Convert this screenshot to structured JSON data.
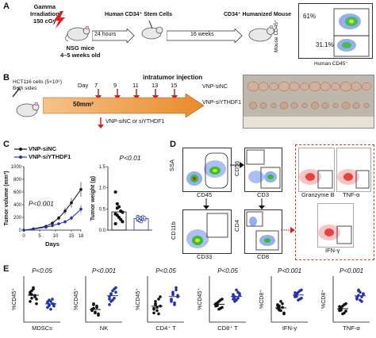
{
  "panels": {
    "a": "A",
    "b": "B",
    "c": "C",
    "d": "D",
    "e": "E"
  },
  "panelA": {
    "irradiation": "Gamma\nIrradiation\n150 cGy",
    "mice": "NSG mice\n4–5 weeks old",
    "interval1": "24 hours",
    "cells": "Human CD34⁺ Stem Cells",
    "interval2": "16 weeks",
    "result": "CD34⁺ Humanized Mouse",
    "flow_ylabel": "Mouse CD45⁺",
    "flow_xlabel": "Human CD45⁺",
    "flow_pct1": "61%",
    "flow_pct2": "31.1%"
  },
  "panelB": {
    "cells": "HCT116 cells (5×10⁶)\nBoth sides",
    "day_label": "Day",
    "days": [
      "7",
      "9",
      "11",
      "13",
      "15"
    ],
    "injection": "intratumor injection",
    "volume": "50mm³",
    "treatment": "VNP-siNC or siYTHDF1",
    "group1": "VNP-siNC",
    "group2": "VNP-siYTHDF1"
  },
  "panelC": {
    "legend1": "VNP-siNC",
    "legend2": "VNP-siYTHDF1",
    "line_ylabel": "Tumor volume (mm³)",
    "line_xlabel": "Days",
    "line_p": "P<0.001",
    "line_yticks": [
      "0",
      "200",
      "400",
      "600",
      "800",
      "1000"
    ],
    "line_xticks": [
      "0",
      "5",
      "10",
      "15",
      "18"
    ],
    "dot_ylabel": "Tumor weight (g)",
    "dot_p": "P<0.01",
    "dot_yticks": [
      "0.0",
      "0.5",
      "1.0",
      "1.5"
    ]
  },
  "panelD": {
    "ssa": "SSA",
    "cd45": "CD45",
    "cd56": "CD56",
    "cd3": "CD3",
    "cd11b": "CD11b",
    "cd33": "CD33",
    "cd4": "CD4",
    "cd8": "CD8",
    "granzyme": "Granzyme B",
    "tnf": "TNF-α",
    "ifn": "IFN-γ"
  },
  "panelE": {
    "pvals": [
      "P<0.05",
      "P<0.001",
      "P<0.05",
      "P<0.05",
      "P<0.001",
      "P<0.001"
    ],
    "ylabels": [
      "%CD45⁺",
      "%CD45⁺",
      "%CD45⁺",
      "%CD45⁺",
      "%CD8⁺",
      "%CD8⁺"
    ],
    "xlabels": [
      "MDSCs",
      "NK",
      "CD4⁺ T",
      "CD8⁺ T",
      "IFN-γ",
      "TNF-α"
    ]
  },
  "chart_data": [
    {
      "type": "line",
      "title": "",
      "xlabel": "Days",
      "ylabel": "Tumor volume (mm³)",
      "x": [
        0,
        3,
        7,
        9,
        11,
        13,
        15,
        18
      ],
      "xlim": [
        0,
        18
      ],
      "ylim": [
        0,
        1000
      ],
      "series": [
        {
          "name": "VNP-siNC",
          "values": [
            0,
            20,
            60,
            110,
            190,
            300,
            430,
            640
          ],
          "color": "#111111"
        },
        {
          "name": "VNP-siYTHDF1",
          "values": [
            0,
            15,
            45,
            70,
            100,
            130,
            190,
            330
          ],
          "color": "#2233aa"
        }
      ],
      "annotation": "P<0.001"
    },
    {
      "type": "scatter",
      "title": "",
      "ylabel": "Tumor weight (g)",
      "ylim": [
        0,
        1.5
      ],
      "groups": [
        {
          "name": "VNP-siNC",
          "mean": 0.43,
          "values": [
            0.9,
            0.62,
            0.55,
            0.45,
            0.42,
            0.38,
            0.35,
            0.3,
            0.25,
            0.2,
            0.15,
            0.52
          ]
        },
        {
          "name": "VNP-siYTHDF1",
          "mean": 0.27,
          "values": [
            0.32,
            0.3,
            0.28,
            0.26,
            0.25,
            0.24,
            0.22,
            0.2,
            0.31,
            0.29,
            0.27,
            0.23
          ]
        }
      ],
      "annotation": "P<0.01"
    },
    {
      "type": "scatter",
      "title": "",
      "xlabel": "MDSCs",
      "ylabel": "%CD45⁺",
      "ylim": [
        0,
        10
      ],
      "groups": [
        {
          "name": "VNP-siNC",
          "values": [
            6.5,
            6.8,
            7.2,
            5.5,
            5.0,
            4.5,
            6.0,
            7.5,
            5.8,
            4.0,
            6.2,
            5.2
          ]
        },
        {
          "name": "VNP-siYTHDF1",
          "values": [
            4.2,
            3.8,
            4.5,
            5.0,
            3.5,
            3.2,
            4.8,
            2.8,
            4.0,
            3.9,
            4.4,
            3.6
          ]
        }
      ],
      "annotation": "P<0.05"
    },
    {
      "type": "scatter",
      "title": "",
      "xlabel": "NK",
      "ylabel": "%CD45⁺",
      "ylim": [
        0,
        10
      ],
      "groups": [
        {
          "name": "VNP-siNC",
          "values": [
            2.5,
            3.0,
            2.0,
            3.5,
            1.8,
            2.8,
            4.0,
            2.2,
            3.2,
            1.5,
            2.6,
            3.8
          ]
        },
        {
          "name": "VNP-siYTHDF1",
          "values": [
            5.5,
            6.0,
            4.8,
            7.2,
            6.5,
            5.0,
            4.5,
            6.8,
            5.2,
            7.5,
            3.8,
            6.2
          ]
        }
      ],
      "annotation": "P<0.001"
    },
    {
      "type": "scatter",
      "title": "",
      "xlabel": "CD4⁺ T",
      "ylabel": "%CD45⁺",
      "ylim": [
        0,
        10
      ],
      "groups": [
        {
          "name": "VNP-siNC",
          "values": [
            3.0,
            4.0,
            2.5,
            5.0,
            3.5,
            2.0,
            4.5,
            3.2,
            1.8,
            5.5,
            2.8,
            3.8
          ]
        },
        {
          "name": "VNP-siYTHDF1",
          "values": [
            5.0,
            6.5,
            4.2,
            7.5,
            5.8,
            4.8,
            6.0,
            3.8,
            7.0,
            5.5,
            4.5,
            6.2
          ]
        }
      ],
      "annotation": "P<0.05"
    },
    {
      "type": "scatter",
      "title": "",
      "xlabel": "CD8⁺ T",
      "ylabel": "%CD45⁺",
      "ylim": [
        0,
        10
      ],
      "groups": [
        {
          "name": "VNP-siNC",
          "values": [
            3.5,
            4.0,
            4.5,
            3.0,
            5.0,
            3.8,
            4.2,
            2.8,
            4.8,
            3.2,
            4.0,
            3.6
          ]
        },
        {
          "name": "VNP-siYTHDF1",
          "values": [
            5.0,
            5.5,
            4.8,
            6.5,
            5.8,
            6.0,
            4.5,
            7.0,
            5.2,
            6.2,
            5.6,
            4.9
          ]
        }
      ],
      "annotation": "P<0.05"
    },
    {
      "type": "scatter",
      "title": "",
      "xlabel": "IFN-γ",
      "ylabel": "%CD8⁺",
      "ylim": [
        0,
        10
      ],
      "groups": [
        {
          "name": "VNP-siNC",
          "values": [
            3.0,
            3.5,
            2.5,
            4.0,
            2.0,
            3.8,
            2.8,
            4.5,
            3.2,
            1.8,
            3.6,
            2.6
          ]
        },
        {
          "name": "VNP-siYTHDF1",
          "values": [
            5.5,
            6.0,
            6.5,
            5.0,
            7.0,
            5.8,
            6.2,
            4.8,
            6.8,
            5.2,
            6.4,
            5.6
          ]
        }
      ],
      "annotation": "P<0.001"
    },
    {
      "type": "scatter",
      "title": "",
      "xlabel": "TNF-α",
      "ylabel": "%CD8⁺",
      "ylim": [
        0,
        10
      ],
      "groups": [
        {
          "name": "VNP-siNC",
          "values": [
            2.5,
            3.0,
            3.5,
            2.0,
            4.0,
            2.8,
            3.2,
            1.8,
            3.8,
            2.4,
            3.4,
            2.6
          ]
        },
        {
          "name": "VNP-siYTHDF1",
          "values": [
            5.0,
            5.8,
            6.5,
            4.5,
            6.0,
            5.2,
            7.0,
            4.8,
            5.5,
            6.2,
            5.4,
            6.8
          ]
        }
      ],
      "annotation": "P<0.001"
    }
  ]
}
